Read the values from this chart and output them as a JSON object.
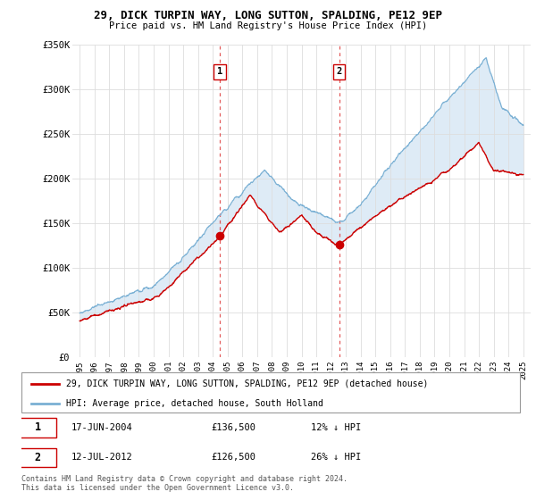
{
  "title": "29, DICK TURPIN WAY, LONG SUTTON, SPALDING, PE12 9EP",
  "subtitle": "Price paid vs. HM Land Registry's House Price Index (HPI)",
  "ylim": [
    0,
    350000
  ],
  "yticks": [
    0,
    50000,
    100000,
    150000,
    200000,
    250000,
    300000,
    350000
  ],
  "ytick_labels": [
    "£0",
    "£50K",
    "£100K",
    "£150K",
    "£200K",
    "£250K",
    "£300K",
    "£350K"
  ],
  "xlim_start": 1994.5,
  "xlim_end": 2025.5,
  "sale1_year": 2004.46,
  "sale1_price": 136500,
  "sale2_year": 2012.54,
  "sale2_price": 126500,
  "red_line_color": "#cc0000",
  "blue_line_color": "#7ab0d4",
  "fill_color": "#c8dff0",
  "marker_color": "#cc0000",
  "legend_label_red": "29, DICK TURPIN WAY, LONG SUTTON, SPALDING, PE12 9EP (detached house)",
  "legend_label_blue": "HPI: Average price, detached house, South Holland",
  "transaction1_num": "1",
  "transaction1_date": "17-JUN-2004",
  "transaction1_price": "£136,500",
  "transaction1_hpi": "12% ↓ HPI",
  "transaction2_num": "2",
  "transaction2_date": "12-JUL-2012",
  "transaction2_price": "£126,500",
  "transaction2_hpi": "26% ↓ HPI",
  "footer": "Contains HM Land Registry data © Crown copyright and database right 2024.\nThis data is licensed under the Open Government Licence v3.0.",
  "background_color": "#ffffff",
  "plot_bg_color": "#ffffff",
  "grid_color": "#dddddd"
}
